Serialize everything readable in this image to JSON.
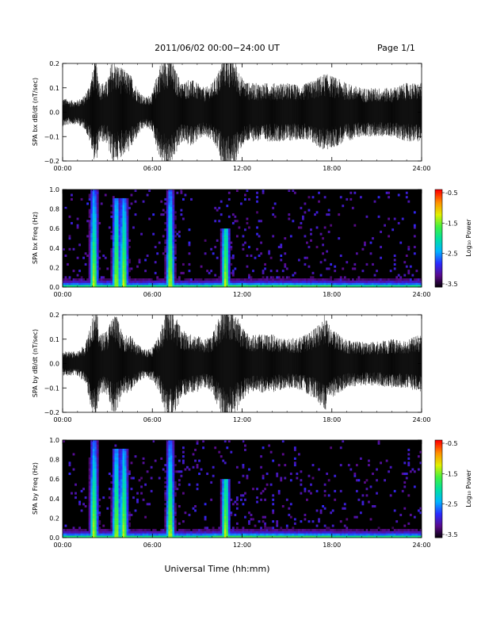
{
  "header": {
    "title": "2011/06/02  00:00−24:00 UT",
    "page": "Page 1/1"
  },
  "footer": {
    "xlabel": "Universal Time (hh:mm)"
  },
  "colorbar": {
    "label": "Log₁₀ Power",
    "ticks": [
      "-0.5",
      "-1.5",
      "-2.5",
      "-3.5"
    ],
    "colormap": [
      "#000000",
      "#5a0a8a",
      "#2a2aff",
      "#00b4ff",
      "#00e0a0",
      "#40f040",
      "#e0f000",
      "#ff9000",
      "#ff0000"
    ]
  },
  "chart_data": [
    {
      "type": "line",
      "ylabel": "SPA bx dB/dt (nT/sec)",
      "xlim": [
        0,
        24
      ],
      "ylim": [
        -0.2,
        0.2
      ],
      "xticks": [
        "00:00",
        "06:00",
        "12:00",
        "18:00",
        "24:00"
      ],
      "yticks": [
        "0.2",
        "0.1",
        "0.0",
        "−0.1",
        "−0.2"
      ],
      "envelope": {
        "hours": [
          0,
          0.5,
          1,
          1.5,
          1.9,
          2.2,
          2.5,
          3,
          3.3,
          3.6,
          4,
          4.5,
          5,
          5.5,
          6,
          6.5,
          6.8,
          7.1,
          7.5,
          8,
          8.5,
          9,
          9.5,
          10,
          10.5,
          10.8,
          11,
          11.5,
          12,
          12.5,
          13,
          14,
          15,
          16,
          17,
          17.5,
          18,
          19,
          20,
          21,
          22,
          23,
          24
        ],
        "amplitude": [
          0.06,
          0.05,
          0.05,
          0.07,
          0.14,
          0.22,
          0.12,
          0.13,
          0.22,
          0.2,
          0.18,
          0.16,
          0.1,
          0.06,
          0.08,
          0.2,
          0.22,
          0.25,
          0.18,
          0.12,
          0.14,
          0.12,
          0.1,
          0.12,
          0.18,
          0.25,
          0.25,
          0.22,
          0.14,
          0.12,
          0.12,
          0.12,
          0.12,
          0.11,
          0.14,
          0.16,
          0.15,
          0.12,
          0.1,
          0.1,
          0.1,
          0.12,
          0.12
        ]
      }
    },
    {
      "type": "heatmap",
      "ylabel": "SPA bx Freq (Hz)",
      "xlim": [
        0,
        24
      ],
      "ylim": [
        0,
        1.0
      ],
      "zlim": [
        -3.5,
        -0.5
      ],
      "xticks": [
        "00:00",
        "06:00",
        "12:00",
        "18:00",
        "24:00"
      ],
      "yticks": [
        "1.0",
        "0.8",
        "0.6",
        "0.4",
        "0.2",
        "0.0"
      ],
      "hot_bands_hours": [
        2.1,
        3.6,
        4.1,
        7.2,
        10.9
      ],
      "hot_bands_top_hz": [
        1.0,
        0.9,
        0.9,
        1.0,
        0.6
      ]
    },
    {
      "type": "line",
      "ylabel": "SPA by dB/dt (nT/sec)",
      "xlim": [
        0,
        24
      ],
      "ylim": [
        -0.2,
        0.2
      ],
      "xticks": [
        "00:00",
        "06:00",
        "12:00",
        "18:00",
        "24:00"
      ],
      "yticks": [
        "0.2",
        "0.1",
        "0.0",
        "−0.1",
        "−0.2"
      ],
      "envelope": {
        "hours": [
          0,
          0.5,
          1,
          1.5,
          1.9,
          2.2,
          2.5,
          3,
          3.3,
          3.6,
          4,
          4.5,
          5,
          5.5,
          6,
          6.5,
          6.8,
          7.1,
          7.5,
          8,
          8.5,
          9,
          9.5,
          10,
          10.5,
          10.8,
          11,
          11.5,
          12,
          12.5,
          13,
          14,
          15,
          16,
          17,
          17.5,
          18,
          19,
          20,
          21,
          22,
          23,
          24
        ],
        "amplitude": [
          0.05,
          0.05,
          0.05,
          0.08,
          0.18,
          0.25,
          0.12,
          0.14,
          0.2,
          0.2,
          0.12,
          0.12,
          0.08,
          0.06,
          0.07,
          0.12,
          0.2,
          0.25,
          0.2,
          0.14,
          0.12,
          0.12,
          0.1,
          0.12,
          0.2,
          0.25,
          0.25,
          0.22,
          0.15,
          0.12,
          0.12,
          0.12,
          0.1,
          0.11,
          0.15,
          0.2,
          0.14,
          0.1,
          0.09,
          0.09,
          0.1,
          0.1,
          0.12
        ]
      }
    },
    {
      "type": "heatmap",
      "ylabel": "SPA by Freq (Hz)",
      "xlim": [
        0,
        24
      ],
      "ylim": [
        0,
        1.0
      ],
      "zlim": [
        -3.5,
        -0.5
      ],
      "xticks": [
        "00:00",
        "06:00",
        "12:00",
        "18:00",
        "24:00"
      ],
      "yticks": [
        "1.0",
        "0.8",
        "0.6",
        "0.4",
        "0.2",
        "0.0"
      ],
      "hot_bands_hours": [
        2.1,
        3.6,
        4.1,
        7.2,
        10.9
      ],
      "hot_bands_top_hz": [
        1.0,
        0.9,
        0.9,
        1.0,
        0.6
      ]
    }
  ]
}
